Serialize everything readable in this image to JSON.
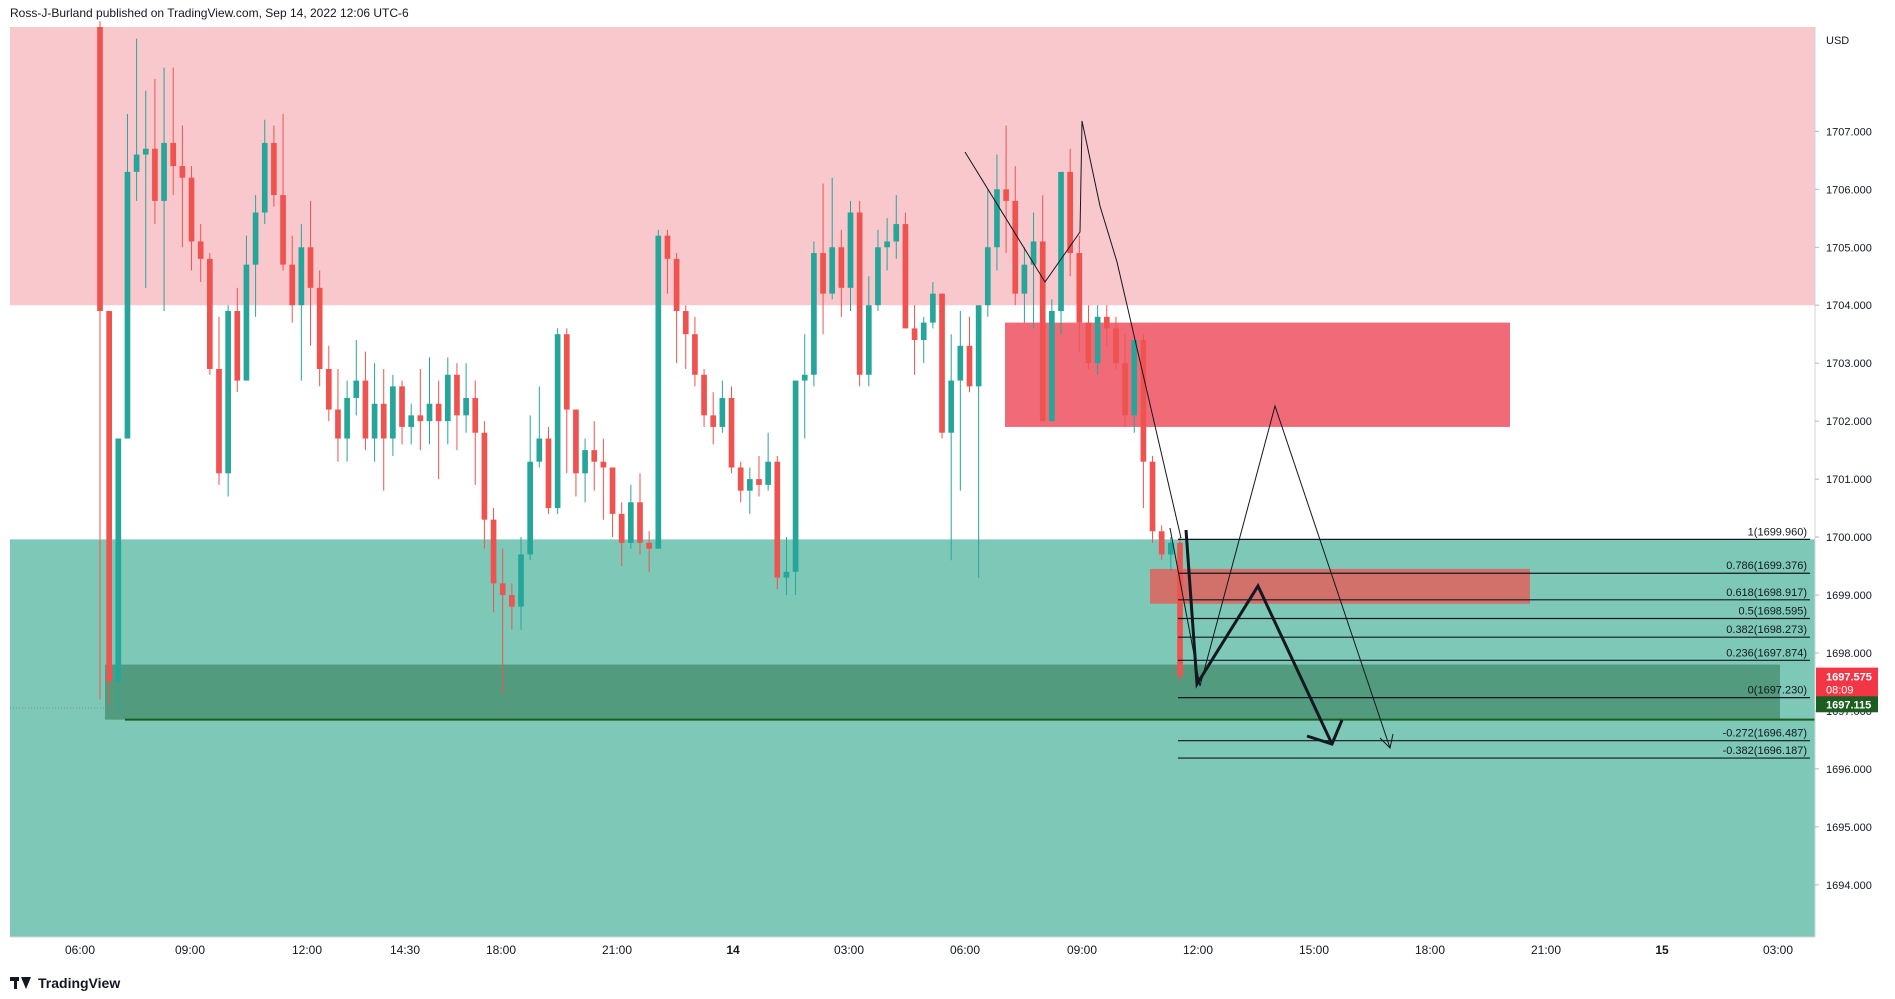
{
  "header": {
    "author": "Ross-J-Burland",
    "published_text": "published on TradingView.com,",
    "timestamp": "Sep 14, 2022 12:06 UTC-6"
  },
  "footer": {
    "brand": "TradingView"
  },
  "colors": {
    "up": "#26a69a",
    "down": "#ef5350",
    "supply_zone": "#f8c8cd",
    "demand_zone": "#7ec8b8",
    "support_box": "#4a9373",
    "red_box": "#f06b77",
    "price_label_red": "#f23645",
    "price_label_green": "#1b5e20"
  },
  "chart_data": {
    "type": "candlestick",
    "symbol_currency": "USD",
    "y_axis_ticks": [
      "1707.000",
      "1706.000",
      "1705.000",
      "1704.000",
      "1703.000",
      "1702.000",
      "1701.000",
      "1700.000",
      "1699.000",
      "1698.000",
      "1697.000",
      "1696.000",
      "1695.000",
      "1694.000"
    ],
    "y_axis_values": [
      1707,
      1706,
      1705,
      1704,
      1703,
      1702,
      1701,
      1700,
      1699,
      1698,
      1697,
      1696,
      1695,
      1694
    ],
    "ylim": [
      1693.1,
      1708.8
    ],
    "x_axis_labels": [
      "06:00",
      "09:00",
      "12:00",
      "14:30",
      "18:00",
      "21:00",
      "14",
      "03:00",
      "06:00",
      "09:00",
      "12:00",
      "15:00",
      "18:00",
      "21:00",
      "15",
      "03:00"
    ],
    "current_price": {
      "value": "1697.575",
      "countdown": "08:09"
    },
    "support_price": "1697.115",
    "zones": [
      {
        "name": "supply",
        "from": 1704.0,
        "to": 1708.8
      },
      {
        "name": "demand",
        "from": 1693.1,
        "to": 1699.96
      },
      {
        "name": "support",
        "from": 1696.85,
        "to": 1697.8
      },
      {
        "name": "resistance-box",
        "from": 1701.9,
        "to": 1703.7
      },
      {
        "name": "fib-box",
        "from": 1698.85,
        "to": 1699.45
      }
    ],
    "fib_levels": [
      {
        "label": "1(1699.960)",
        "value": 1699.96
      },
      {
        "label": "0.786(1699.376)",
        "value": 1699.376
      },
      {
        "label": "0.618(1698.917)",
        "value": 1698.917
      },
      {
        "label": "0.5(1698.595)",
        "value": 1698.595
      },
      {
        "label": "0.382(1698.273)",
        "value": 1698.273
      },
      {
        "label": "0.236(1697.874)",
        "value": 1697.874
      },
      {
        "label": "0(1697.230)",
        "value": 1697.23
      },
      {
        "label": "-0.272(1696.487)",
        "value": 1696.487
      },
      {
        "label": "-0.382(1696.187)",
        "value": 1696.187
      }
    ],
    "candles": [
      [
        1708.8,
        1708.9,
        1697.2,
        1703.9
      ],
      [
        1703.9,
        1703.9,
        1697.1,
        1697.5
      ],
      [
        1697.5,
        1701.7,
        1697.0,
        1701.7
      ],
      [
        1701.7,
        1707.3,
        1701.7,
        1706.3
      ],
      [
        1706.3,
        1708.6,
        1705.8,
        1706.6
      ],
      [
        1706.6,
        1707.7,
        1704.3,
        1706.7
      ],
      [
        1706.7,
        1707.9,
        1705.4,
        1705.8
      ],
      [
        1705.8,
        1708.1,
        1703.9,
        1706.8
      ],
      [
        1706.8,
        1708.1,
        1705.9,
        1706.4
      ],
      [
        1706.4,
        1707.1,
        1705.0,
        1706.2
      ],
      [
        1706.2,
        1706.4,
        1704.6,
        1705.1
      ],
      [
        1705.1,
        1705.4,
        1704.4,
        1704.8
      ],
      [
        1704.8,
        1704.9,
        1702.8,
        1702.9
      ],
      [
        1702.9,
        1703.8,
        1700.9,
        1701.1
      ],
      [
        1701.1,
        1704.0,
        1700.7,
        1703.9
      ],
      [
        1703.9,
        1704.3,
        1702.5,
        1702.7
      ],
      [
        1702.7,
        1705.2,
        1702.7,
        1704.7
      ],
      [
        1704.7,
        1705.9,
        1703.8,
        1705.6
      ],
      [
        1705.6,
        1707.2,
        1705.4,
        1706.8
      ],
      [
        1706.8,
        1707.1,
        1705.7,
        1705.9
      ],
      [
        1705.9,
        1707.3,
        1704.6,
        1704.7
      ],
      [
        1704.7,
        1705.2,
        1703.7,
        1704.0
      ],
      [
        1704.0,
        1705.4,
        1702.7,
        1705.0
      ],
      [
        1705.0,
        1705.8,
        1703.3,
        1704.3
      ],
      [
        1704.3,
        1704.6,
        1702.6,
        1702.9
      ],
      [
        1702.9,
        1703.3,
        1702.0,
        1702.2
      ],
      [
        1702.2,
        1702.9,
        1701.3,
        1701.7
      ],
      [
        1701.7,
        1702.7,
        1701.3,
        1702.4
      ],
      [
        1702.4,
        1703.4,
        1702.1,
        1702.7
      ],
      [
        1702.7,
        1703.2,
        1701.5,
        1701.7
      ],
      [
        1701.7,
        1703.0,
        1701.3,
        1702.3
      ],
      [
        1702.3,
        1702.9,
        1700.8,
        1701.7
      ],
      [
        1701.7,
        1702.8,
        1701.4,
        1702.6
      ],
      [
        1702.6,
        1702.7,
        1701.6,
        1701.9
      ],
      [
        1701.9,
        1702.3,
        1701.6,
        1702.1
      ],
      [
        1702.1,
        1702.9,
        1701.5,
        1702.0
      ],
      [
        1702.0,
        1703.1,
        1701.6,
        1702.3
      ],
      [
        1702.3,
        1702.7,
        1701.0,
        1702.0
      ],
      [
        1702.0,
        1703.1,
        1701.6,
        1702.8
      ],
      [
        1702.8,
        1703.0,
        1701.5,
        1702.1
      ],
      [
        1702.1,
        1703.0,
        1701.8,
        1702.4
      ],
      [
        1702.4,
        1702.7,
        1700.9,
        1701.8
      ],
      [
        1701.8,
        1702.0,
        1699.8,
        1700.3
      ],
      [
        1700.3,
        1700.5,
        1698.7,
        1699.2
      ],
      [
        1699.2,
        1699.8,
        1697.3,
        1699.0
      ],
      [
        1699.0,
        1699.2,
        1698.4,
        1698.8
      ],
      [
        1698.8,
        1700.0,
        1698.4,
        1699.7
      ],
      [
        1699.7,
        1702.1,
        1699.6,
        1701.3
      ],
      [
        1701.3,
        1702.6,
        1701.2,
        1701.7
      ],
      [
        1701.7,
        1701.9,
        1700.4,
        1700.5
      ],
      [
        1700.5,
        1703.6,
        1700.4,
        1703.5
      ],
      [
        1703.5,
        1703.6,
        1701.1,
        1702.2
      ],
      [
        1702.2,
        1702.2,
        1700.7,
        1701.1
      ],
      [
        1701.1,
        1701.7,
        1700.6,
        1701.5
      ],
      [
        1701.5,
        1702.0,
        1700.8,
        1701.3
      ],
      [
        1701.3,
        1701.7,
        1700.3,
        1701.2
      ],
      [
        1701.2,
        1701.2,
        1700.0,
        1700.4
      ],
      [
        1700.4,
        1700.6,
        1699.5,
        1699.9
      ],
      [
        1699.9,
        1700.9,
        1699.8,
        1700.6
      ],
      [
        1700.6,
        1701.1,
        1699.7,
        1699.9
      ],
      [
        1699.9,
        1700.1,
        1699.4,
        1699.8
      ],
      [
        1699.8,
        1705.3,
        1699.8,
        1705.2
      ],
      [
        1705.2,
        1705.3,
        1704.2,
        1704.8
      ],
      [
        1704.8,
        1704.9,
        1703.0,
        1703.9
      ],
      [
        1703.9,
        1704.0,
        1702.9,
        1703.5
      ],
      [
        1703.5,
        1703.8,
        1702.6,
        1702.8
      ],
      [
        1702.8,
        1702.9,
        1701.9,
        1702.1
      ],
      [
        1702.1,
        1702.5,
        1701.6,
        1701.9
      ],
      [
        1701.9,
        1702.7,
        1701.8,
        1702.4
      ],
      [
        1702.4,
        1702.6,
        1701.1,
        1701.2
      ],
      [
        1701.2,
        1701.3,
        1700.6,
        1700.8
      ],
      [
        1700.8,
        1701.2,
        1700.4,
        1701.0
      ],
      [
        1701.0,
        1701.4,
        1700.7,
        1700.9
      ],
      [
        1700.9,
        1701.8,
        1700.8,
        1701.3
      ],
      [
        1701.3,
        1701.4,
        1699.1,
        1699.3
      ],
      [
        1699.3,
        1700.0,
        1699.0,
        1699.4
      ],
      [
        1699.4,
        1702.6,
        1699.0,
        1702.7
      ],
      [
        1702.7,
        1703.5,
        1701.7,
        1702.8
      ],
      [
        1702.8,
        1705.1,
        1702.6,
        1704.9
      ],
      [
        1704.9,
        1706.1,
        1703.5,
        1704.2
      ],
      [
        1704.2,
        1706.2,
        1704.1,
        1705.0
      ],
      [
        1705.0,
        1705.3,
        1703.8,
        1704.3
      ],
      [
        1704.3,
        1705.8,
        1703.9,
        1705.6
      ],
      [
        1705.6,
        1705.8,
        1702.6,
        1702.8
      ],
      [
        1702.8,
        1704.5,
        1702.6,
        1704.0
      ],
      [
        1704.0,
        1705.3,
        1703.9,
        1705.0
      ],
      [
        1705.0,
        1705.5,
        1704.6,
        1705.1
      ],
      [
        1705.1,
        1705.9,
        1704.8,
        1705.4
      ],
      [
        1705.4,
        1705.6,
        1703.6,
        1703.6
      ],
      [
        1703.6,
        1704.0,
        1702.8,
        1703.4
      ],
      [
        1703.4,
        1703.8,
        1703.0,
        1703.7
      ],
      [
        1703.7,
        1704.4,
        1703.6,
        1704.2
      ],
      [
        1704.2,
        1704.2,
        1701.7,
        1701.8
      ],
      [
        1701.8,
        1703.5,
        1699.6,
        1702.7
      ],
      [
        1702.7,
        1703.9,
        1700.8,
        1703.3
      ],
      [
        1703.3,
        1703.8,
        1702.5,
        1702.6
      ],
      [
        1702.6,
        1704.0,
        1699.3,
        1704.0
      ],
      [
        1704.0,
        1706.0,
        1703.8,
        1705.0
      ],
      [
        1705.0,
        1706.6,
        1704.6,
        1706.0
      ],
      [
        1706.0,
        1707.1,
        1704.9,
        1705.8
      ],
      [
        1705.8,
        1706.4,
        1704.0,
        1704.2
      ],
      [
        1704.2,
        1705.0,
        1703.7,
        1704.7
      ],
      [
        1704.7,
        1705.6,
        1703.6,
        1705.1
      ],
      [
        1705.1,
        1705.9,
        1702.1,
        1702.0
      ],
      [
        1702.0,
        1704.1,
        1702.0,
        1703.9
      ],
      [
        1703.9,
        1706.2,
        1703.5,
        1706.3
      ],
      [
        1706.3,
        1706.7,
        1704.5,
        1704.9
      ],
      [
        1704.9,
        1705.2,
        1703.2,
        1703.7
      ],
      [
        1703.7,
        1704.0,
        1702.9,
        1703.0
      ],
      [
        1703.0,
        1704.0,
        1702.8,
        1703.8
      ],
      [
        1703.8,
        1704.0,
        1703.3,
        1703.6
      ],
      [
        1703.6,
        1703.8,
        1702.9,
        1703.0
      ],
      [
        1703.0,
        1703.5,
        1701.9,
        1702.1
      ],
      [
        1702.1,
        1703.4,
        1701.8,
        1703.4
      ],
      [
        1703.4,
        1703.5,
        1700.5,
        1701.3
      ],
      [
        1701.3,
        1701.4,
        1699.9,
        1700.1
      ],
      [
        1700.1,
        1700.2,
        1699.6,
        1699.7
      ],
      [
        1699.7,
        1700.0,
        1699.4,
        1699.9
      ],
      [
        1699.9,
        1700.0,
        1697.5,
        1697.6
      ]
    ]
  }
}
